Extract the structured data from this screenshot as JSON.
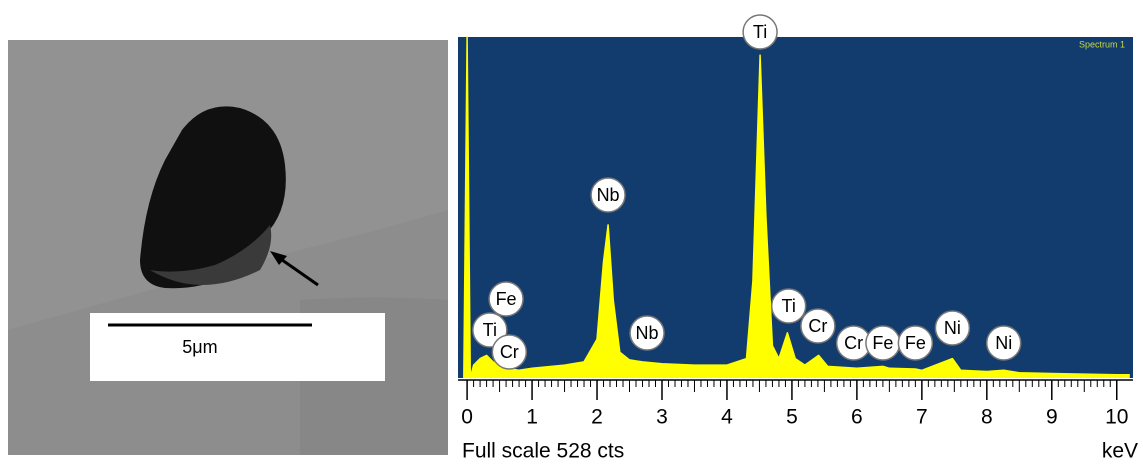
{
  "image": {
    "scale_bar_label": "5μm"
  },
  "chart_data": {
    "type": "area",
    "spectrum_label": "Spectrum 1",
    "footer": "Full scale 528 cts",
    "x_label": "keV",
    "background": "#133c6e",
    "color": "#ffff00",
    "xlim": [
      -0.14,
      10.25
    ],
    "xticks": [
      0,
      1,
      2,
      3,
      4,
      5,
      6,
      7,
      8,
      9,
      10
    ],
    "ylim": [
      0,
      528
    ],
    "x": [
      -0.05,
      0.0,
      0.05,
      0.1,
      0.2,
      0.3,
      0.4,
      0.5,
      0.6,
      0.8,
      1.0,
      1.2,
      1.5,
      1.8,
      2.0,
      2.1,
      2.17,
      2.25,
      2.35,
      2.5,
      2.7,
      3.0,
      3.5,
      4.0,
      4.3,
      4.4,
      4.51,
      4.6,
      4.7,
      4.8,
      4.93,
      5.05,
      5.2,
      5.41,
      5.55,
      6.0,
      6.4,
      6.5,
      6.9,
      7.0,
      7.47,
      7.6,
      8.0,
      8.26,
      8.5,
      9.0,
      9.5,
      10.0,
      10.2
    ],
    "series": [
      {
        "values": [
          0,
          528,
          0,
          20,
          30,
          35,
          25,
          20,
          15,
          12,
          15,
          17,
          20,
          25,
          60,
          180,
          237,
          120,
          40,
          28,
          25,
          22,
          20,
          20,
          30,
          150,
          500,
          250,
          50,
          30,
          70,
          30,
          20,
          35,
          18,
          15,
          18,
          15,
          14,
          12,
          30,
          12,
          10,
          12,
          8,
          7,
          6,
          5,
          5
        ]
      }
    ],
    "annotations": [
      {
        "label": "Ti",
        "x": 4.51
      },
      {
        "label": "Nb",
        "x": 2.17
      },
      {
        "label": "Fe",
        "x": 0.6
      },
      {
        "label": "Ti",
        "x": 0.35
      },
      {
        "label": "Cr",
        "x": 0.65
      },
      {
        "label": "Nb",
        "x": 2.77
      },
      {
        "label": "Ti",
        "x": 4.95
      },
      {
        "label": "Cr",
        "x": 5.4
      },
      {
        "label": "Cr",
        "x": 5.95
      },
      {
        "label": "Fe",
        "x": 6.4
      },
      {
        "label": "Fe",
        "x": 6.9
      },
      {
        "label": "Ni",
        "x": 7.47
      },
      {
        "label": "Ni",
        "x": 8.26
      }
    ]
  }
}
